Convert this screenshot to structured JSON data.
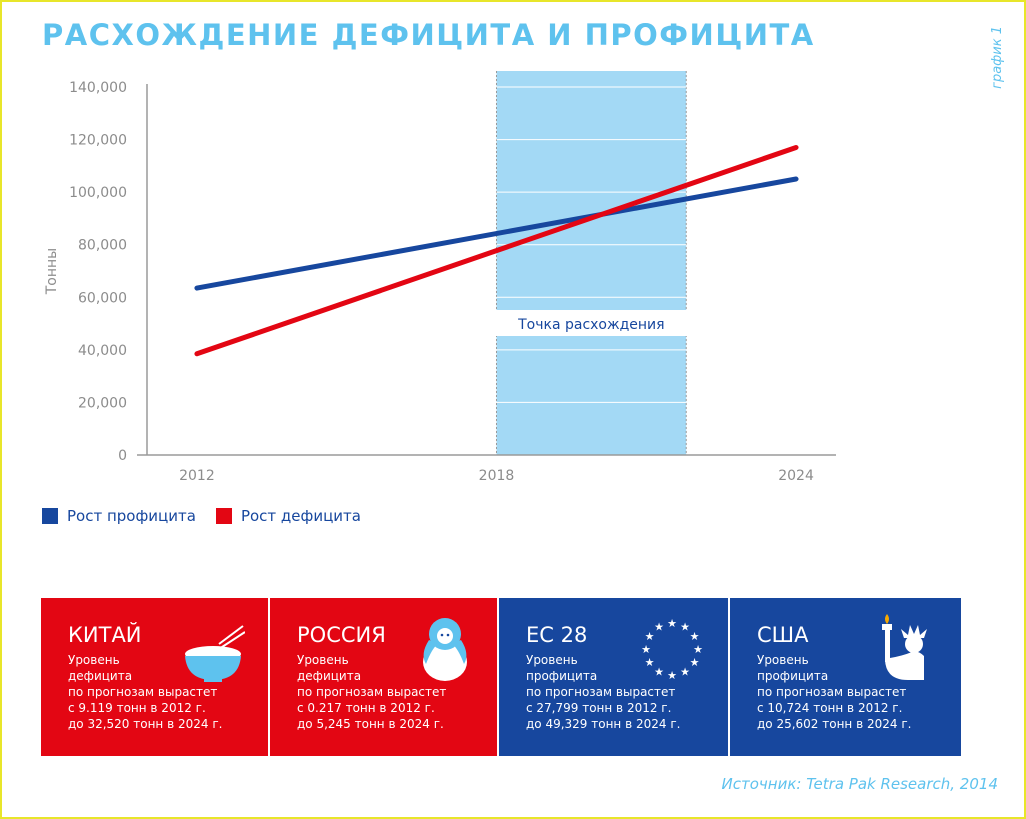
{
  "title": "РАСХОЖДЕНИЕ ДЕФИЦИТА И ПРОФИЦИТА",
  "side_label": "график 1",
  "colors": {
    "surplus": "#17479e",
    "deficit": "#e30613",
    "accent": "#5ec2ee",
    "zone": "#a3d9f5"
  },
  "chart_data": {
    "type": "line",
    "title": "РАСХОЖДЕНИЕ ДЕФИЦИТА И ПРОФИЦИТА",
    "xlabel": "",
    "ylabel": "Тонны",
    "x": [
      2012,
      2024
    ],
    "xticks": [
      "2012",
      "2018",
      "2024"
    ],
    "xlim": [
      2011,
      2024.8
    ],
    "yticks": [
      "0",
      "20,000",
      "40,000",
      "60,000",
      "80,000",
      "100,000",
      "120,000",
      "140,000"
    ],
    "ylim": [
      0,
      140000
    ],
    "grid": false,
    "series": [
      {
        "name": "Рост профицита",
        "values": [
          63500,
          105000
        ],
        "color": "#17479e"
      },
      {
        "name": "Рост дефицита",
        "values": [
          38500,
          117000
        ],
        "color": "#e30613"
      }
    ],
    "highlight": {
      "x_from": 2018,
      "x_to": 2021.8,
      "label": "Точка расхождения"
    },
    "legend": "bottom-left"
  },
  "panels": [
    {
      "title": "КИТАЙ",
      "text": [
        "Уровень",
        "дефицита",
        "по прогнозам вырастет",
        "с 9.119 тонн в 2012 г.",
        "до 32,520 тонн в 2024 г."
      ],
      "color": "#e30613",
      "icon": "rice-bowl-icon"
    },
    {
      "title": "РОССИЯ",
      "text": [
        "Уровень",
        "дефицита",
        "по прогнозам вырастет",
        "с 0.217 тонн в 2012 г.",
        "до 5,245 тонн в 2024 г."
      ],
      "color": "#e30613",
      "icon": "matryoshka-icon"
    },
    {
      "title": "ЕС 28",
      "text": [
        "Уровень",
        "профицита",
        "по прогнозам вырастет",
        "с 27,799 тонн в 2012 г.",
        "до 49,329 тонн в 2024 г."
      ],
      "color": "#17479e",
      "icon": "eu-stars-icon"
    },
    {
      "title": "США",
      "text": [
        "Уровень",
        "профицита",
        "по прогнозам вырастет",
        "с 10,724 тонн в 2012 г.",
        "до 25,602 тонн в 2024 г."
      ],
      "color": "#17479e",
      "icon": "statue-of-liberty-icon"
    }
  ],
  "source": "Источник: Tetra Pak Research, 2014"
}
